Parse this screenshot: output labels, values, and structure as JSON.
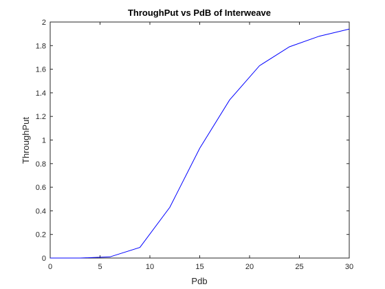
{
  "chart_data": {
    "type": "line",
    "title": "ThroughPut vs PdB of Interweave",
    "xlabel": "Pdb",
    "ylabel": "ThroughPut",
    "xlim": [
      0,
      30
    ],
    "ylim": [
      0,
      2
    ],
    "xticks": [
      0,
      5,
      10,
      15,
      20,
      25,
      30
    ],
    "yticks": [
      0,
      0.2,
      0.4,
      0.6,
      0.8,
      1,
      1.2,
      1.4,
      1.6,
      1.8,
      2
    ],
    "grid": false,
    "series": [
      {
        "name": "Interweave",
        "color": "#0000ff",
        "x": [
          0,
          3,
          6,
          9,
          12,
          15,
          18,
          21,
          24,
          27,
          30
        ],
        "y": [
          0.0,
          0.0,
          0.01,
          0.09,
          0.43,
          0.93,
          1.34,
          1.63,
          1.79,
          1.88,
          1.94
        ]
      }
    ]
  }
}
